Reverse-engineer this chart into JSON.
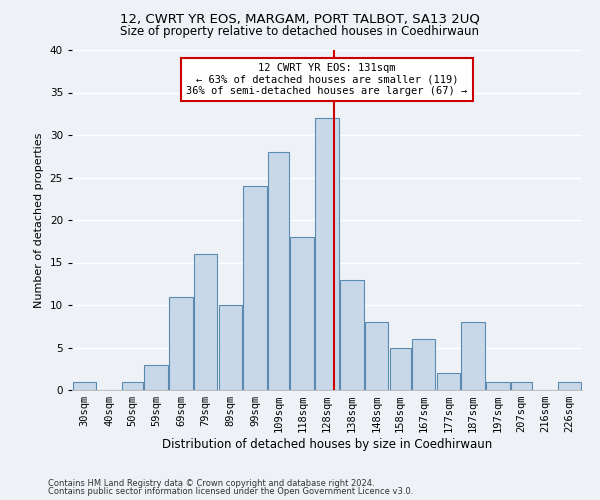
{
  "title1": "12, CWRT YR EOS, MARGAM, PORT TALBOT, SA13 2UQ",
  "title2": "Size of property relative to detached houses in Coedhirwaun",
  "xlabel": "Distribution of detached houses by size in Coedhirwaun",
  "ylabel": "Number of detached properties",
  "footnote1": "Contains HM Land Registry data © Crown copyright and database right 2024.",
  "footnote2": "Contains public sector information licensed under the Open Government Licence v3.0.",
  "annotation_title": "12 CWRT YR EOS: 131sqm",
  "annotation_line1": "← 63% of detached houses are smaller (119)",
  "annotation_line2": "36% of semi-detached houses are larger (67) →",
  "subject_value": 131,
  "bar_labels": [
    "30sqm",
    "40sqm",
    "50sqm",
    "59sqm",
    "69sqm",
    "79sqm",
    "89sqm",
    "99sqm",
    "109sqm",
    "118sqm",
    "128sqm",
    "138sqm",
    "148sqm",
    "158sqm",
    "167sqm",
    "177sqm",
    "187sqm",
    "197sqm",
    "207sqm",
    "216sqm",
    "226sqm"
  ],
  "bar_values": [
    1,
    0,
    1,
    3,
    11,
    16,
    10,
    24,
    28,
    18,
    32,
    13,
    8,
    5,
    6,
    2,
    8,
    1,
    1,
    0,
    1
  ],
  "bar_edges": [
    25,
    35,
    45,
    54,
    64,
    74,
    84,
    94,
    104,
    113,
    123,
    133,
    143,
    153,
    162,
    172,
    182,
    192,
    202,
    211,
    221,
    231
  ],
  "bar_color": "#c8d8e8",
  "bar_edge_color": "#5a8ab0",
  "subject_line_color": "#cc0000",
  "annotation_box_color": "#cc0000",
  "bg_color": "#eef2f7",
  "ylim": [
    0,
    40
  ],
  "yticks": [
    0,
    5,
    10,
    15,
    20,
    25,
    30,
    35,
    40
  ],
  "title1_fontsize": 9.5,
  "title2_fontsize": 8.5,
  "xlabel_fontsize": 8.5,
  "ylabel_fontsize": 8,
  "tick_fontsize": 7.5,
  "annotation_fontsize": 7.5,
  "footnote_fontsize": 6
}
